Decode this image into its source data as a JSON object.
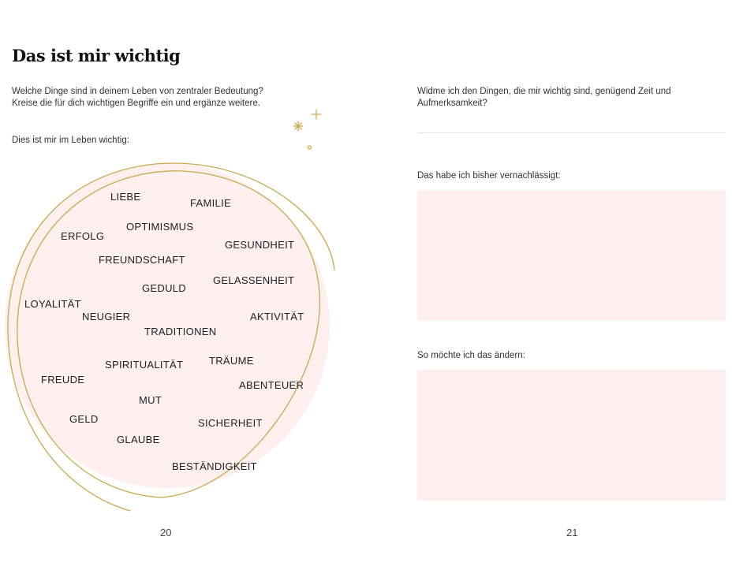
{
  "left_page": {
    "title": "Das ist mir wichtig",
    "intro_line1": "Welche Dinge sind in deinem Leben von zentraler Bedeutung?",
    "intro_line2": "Kreise die für dich wichtigen Begriffe ein und ergänze weitere.",
    "subheading": "Dies ist mir im Leben wichtig:",
    "words": [
      "LIEBE",
      "FAMILIE",
      "OPTIMISMUS",
      "ERFOLG",
      "GESUNDHEIT",
      "FREUNDSCHAFT",
      "GELASSENHEIT",
      "GEDULD",
      "LOYALITÄT",
      "NEUGIER",
      "AKTIVITÄT",
      "TRADITIONEN",
      "TRÄUME",
      "SPIRITUALITÄT",
      "FREUDE",
      "ABENTEUER",
      "MUT",
      "GELD",
      "SICHERHEIT",
      "GLAUBE",
      "BESTÄNDIGKEIT"
    ],
    "page_number": "20"
  },
  "right_page": {
    "question_line1": "Widme ich den Dingen, die mir wichtig sind, genügend Zeit und",
    "question_line2": "Aufmerksamkeit?",
    "label_neglected": "Das habe ich bisher vernachlässigt:",
    "label_change": "So möchte ich das ändern:",
    "page_number": "21"
  },
  "colors": {
    "circle_fill": "#fdf0ef",
    "gold_line": "#c9a94c",
    "box_fill": "#fdf0ef"
  }
}
